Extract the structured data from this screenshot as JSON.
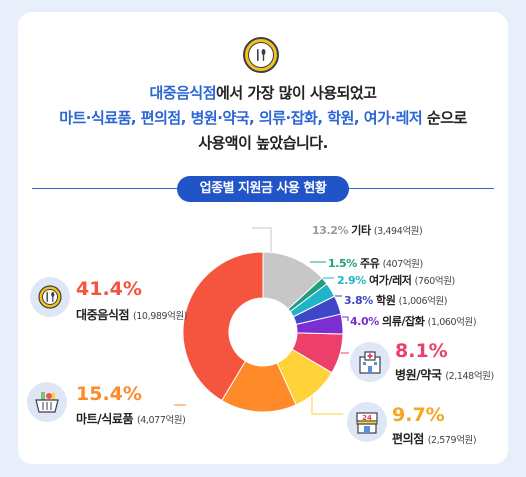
{
  "headline": {
    "line1_highlight": "대중음식점",
    "line1_rest": "에서 가장 많이 사용되었고",
    "line2_highlight": "마트·식료품, 편의점, 병원·약국, 의류·잡화, 학원, 여가·레저",
    "line2_rest": " 순으로",
    "line3": "사용액이 높았습니다."
  },
  "section_title": "업종별 지원금 사용 현황",
  "icons": {
    "hero": "fork-spoon-icon",
    "restaurant": "fork-spoon-icon",
    "mart": "grocery-basket-icon",
    "hospital": "hospital-building-icon",
    "convenience": "convenience-store-icon"
  },
  "colors": {
    "accent": "#2c66d6",
    "restaurant": "#f5553f",
    "mart": "#ff8a2a",
    "convenience": "#ffd23a",
    "hospital": "#ec3f6c",
    "clothing": "#7b2fd0",
    "academy": "#3e46c9",
    "leisure": "#1fb5c9",
    "liquor": "#1f9f7c",
    "other": "#c7c7c7"
  },
  "chart_data": {
    "type": "pie",
    "variant": "donut",
    "title": "업종별 지원금 사용 현황",
    "slices": [
      {
        "label": "대중음식점",
        "percent": 41.4,
        "amount": "10,989억원",
        "pct_text": "41.4%",
        "amt_text": "(10,989억원)",
        "color": "#f5553f"
      },
      {
        "label": "마트/식료품",
        "percent": 15.4,
        "amount": "4,077억원",
        "pct_text": "15.4%",
        "amt_text": "(4,077억원)",
        "color": "#ff8a2a"
      },
      {
        "label": "편의점",
        "percent": 9.7,
        "amount": "2,579억원",
        "pct_text": "9.7%",
        "amt_text": "(2,579억원)",
        "color": "#ffd23a"
      },
      {
        "label": "병원/약국",
        "percent": 8.1,
        "amount": "2,148억원",
        "pct_text": "8.1%",
        "amt_text": "(2,148억원)",
        "color": "#ec3f6c"
      },
      {
        "label": "의류/잡화",
        "percent": 4.0,
        "amount": "1,060억원",
        "pct_text": "4.0%",
        "amt_text": "(1,060억원)",
        "color": "#7b2fd0"
      },
      {
        "label": "학원",
        "percent": 3.8,
        "amount": "1,006억원",
        "pct_text": "3.8%",
        "amt_text": "(1,006억원)",
        "color": "#3e46c9"
      },
      {
        "label": "여가/레저",
        "percent": 2.9,
        "amount": "760억원",
        "pct_text": "2.9%",
        "amt_text": "(760억원)",
        "color": "#1fb5c9"
      },
      {
        "label": "주유",
        "percent": 1.5,
        "amount": "407억원",
        "pct_text": "1.5%",
        "amt_text": "(407억원)",
        "color": "#1f9f7c"
      },
      {
        "label": "기타",
        "percent": 13.2,
        "amount": "3,494억원",
        "pct_text": "13.2%",
        "amt_text": "(3,494억원)",
        "color": "#c7c7c7"
      }
    ]
  }
}
